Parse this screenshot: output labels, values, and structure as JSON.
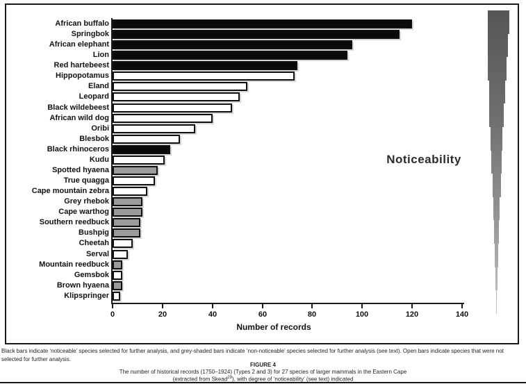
{
  "chart_data": {
    "type": "bar",
    "orientation": "horizontal",
    "xlabel": "Number of records",
    "xlim": [
      0,
      140
    ],
    "xticks": [
      0,
      20,
      40,
      60,
      80,
      100,
      120,
      140
    ],
    "grid": false,
    "annotation": "Noticeability",
    "categories": [
      "African buffalo",
      "Springbok",
      "African elephant",
      "Lion",
      "Red hartebeest",
      "Hippopotamus",
      "Eland",
      "Leopard",
      "Black wildebeest",
      "African wild dog",
      "Oribi",
      "Blesbok",
      "Black rhinoceros",
      "Kudu",
      "Spotted hyaena",
      "True quagga",
      "Cape mountain zebra",
      "Grey rhebok",
      "Cape warthog",
      "Southern reedbuck",
      "Bushpig",
      "Cheetah",
      "Serval",
      "Mountain reedbuck",
      "Gemsbok",
      "Brown hyaena",
      "Klipspringer"
    ],
    "values": [
      120,
      115,
      96,
      94,
      74,
      73,
      54,
      51,
      48,
      40,
      33,
      27,
      23,
      21,
      18,
      17,
      14,
      12,
      12,
      11,
      11,
      8,
      6,
      4,
      4,
      4,
      3
    ],
    "bar_styles": [
      "black",
      "black",
      "black",
      "black",
      "black",
      "open",
      "open",
      "open",
      "open",
      "open",
      "open",
      "open",
      "black",
      "open",
      "grey",
      "open",
      "open",
      "grey",
      "grey",
      "grey",
      "grey",
      "open",
      "open",
      "grey",
      "open",
      "grey",
      "open"
    ]
  },
  "labels": {
    "noticeability": "Noticeability",
    "x_axis_title": "Number of records"
  },
  "caption": {
    "note": "Black bars indicate ‘noticeable’ species selected for further analysis, and grey-shaded bars indicate ‘non-noticeable’ species selected for further analysis (see text).  Open bars indicate species that were not selected for further analysis.",
    "figure_label": "FIGURE 4",
    "line1": "The number of historical records (1750–1924) (Types 2 and 3) for 27 species of larger mammals in the Eastern Cape",
    "line2_pre": "(extracted from Skead",
    "line2_sup": "29",
    "line2_post": "), with degree of ‘noticeability’ (see text) indicated"
  },
  "colors": {
    "black_bar": "#0a0a0a",
    "grey_bar": "#9b9b9b",
    "open_bar": "#ffffff",
    "bar_border": "#101010",
    "axis": "#1a1a1a",
    "wedge_top": "#565656",
    "wedge_bottom": "#c6c6c6"
  }
}
